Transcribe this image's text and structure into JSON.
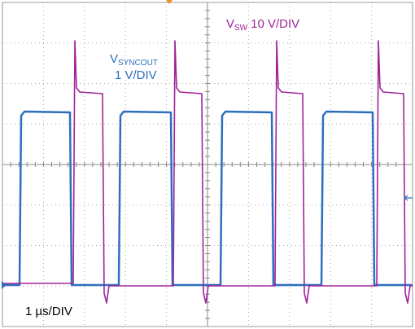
{
  "labels": {
    "vsw": {
      "symbol": "V",
      "subscript": "SW",
      "scale": "10 V/DIV"
    },
    "vsyncout": {
      "symbol": "V",
      "subscript": "SYNCOUT",
      "scale": "1 V/DIV"
    },
    "timebase": "1 µs/DIV"
  }
}
